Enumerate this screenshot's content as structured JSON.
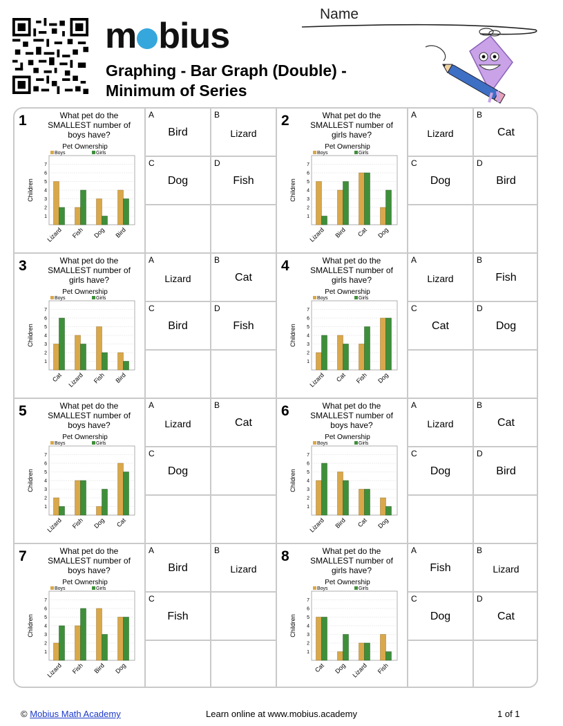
{
  "header": {
    "logo": "mobius",
    "title_line1": "Graphing - Bar Graph (Double) -",
    "title_line2": "Minimum of Series",
    "name_label": "Name"
  },
  "colors": {
    "boys": "#d9a84a",
    "girls": "#3f8f3a",
    "border": "#c9c9c9",
    "link": "#1a37c9",
    "logo_dot": "#35a7dd"
  },
  "problems": [
    {
      "number": "1",
      "question": "What pet do the SMALLEST number of boys have?",
      "options": [
        {
          "letter": "A",
          "text": "Bird"
        },
        {
          "letter": "B",
          "text": "Lizard"
        },
        {
          "letter": "C",
          "text": "Dog"
        },
        {
          "letter": "D",
          "text": "Fish"
        }
      ]
    },
    {
      "number": "2",
      "question": "What pet do the SMALLEST number of girls have?",
      "options": [
        {
          "letter": "A",
          "text": "Lizard"
        },
        {
          "letter": "B",
          "text": "Cat"
        },
        {
          "letter": "C",
          "text": "Dog"
        },
        {
          "letter": "D",
          "text": "Bird"
        }
      ]
    },
    {
      "number": "3",
      "question": "What pet do the SMALLEST number of girls have?",
      "options": [
        {
          "letter": "A",
          "text": "Lizard"
        },
        {
          "letter": "B",
          "text": "Cat"
        },
        {
          "letter": "C",
          "text": "Bird"
        },
        {
          "letter": "D",
          "text": "Fish"
        }
      ]
    },
    {
      "number": "4",
      "question": "What pet do the SMALLEST number of girls have?",
      "options": [
        {
          "letter": "A",
          "text": "Lizard"
        },
        {
          "letter": "B",
          "text": "Fish"
        },
        {
          "letter": "C",
          "text": "Cat"
        },
        {
          "letter": "D",
          "text": "Dog"
        }
      ]
    },
    {
      "number": "5",
      "question": "What pet do the SMALLEST number of boys have?",
      "options": [
        {
          "letter": "A",
          "text": "Lizard"
        },
        {
          "letter": "B",
          "text": "Cat"
        },
        {
          "letter": "C",
          "text": "Dog"
        }
      ]
    },
    {
      "number": "6",
      "question": "What pet do the SMALLEST number of boys have?",
      "options": [
        {
          "letter": "A",
          "text": "Lizard"
        },
        {
          "letter": "B",
          "text": "Cat"
        },
        {
          "letter": "C",
          "text": "Dog"
        },
        {
          "letter": "D",
          "text": "Bird"
        }
      ]
    },
    {
      "number": "7",
      "question": "What pet do the SMALLEST number of boys have?",
      "options": [
        {
          "letter": "A",
          "text": "Bird"
        },
        {
          "letter": "B",
          "text": "Lizard"
        },
        {
          "letter": "C",
          "text": "Fish"
        }
      ]
    },
    {
      "number": "8",
      "question": "What pet do the SMALLEST number of girls have?",
      "options": [
        {
          "letter": "A",
          "text": "Fish"
        },
        {
          "letter": "B",
          "text": "Lizard"
        },
        {
          "letter": "C",
          "text": "Dog"
        },
        {
          "letter": "D",
          "text": "Cat"
        }
      ]
    }
  ],
  "chart_data": [
    {
      "type": "bar",
      "title": "Pet Ownership",
      "ylabel": "Children",
      "ylim": [
        0,
        8
      ],
      "legend": "top-left",
      "categories": [
        "Lizard",
        "Fish",
        "Dog",
        "Bird"
      ],
      "series": [
        {
          "name": "Boys",
          "values": [
            5,
            2,
            3,
            4
          ]
        },
        {
          "name": "Girls",
          "values": [
            2,
            4,
            1,
            3
          ]
        }
      ]
    },
    {
      "type": "bar",
      "title": "Pet Ownership",
      "ylabel": "Children",
      "ylim": [
        0,
        8
      ],
      "legend": "top-left",
      "categories": [
        "Lizard",
        "Bird",
        "Cat",
        "Dog"
      ],
      "series": [
        {
          "name": "Boys",
          "values": [
            5,
            4,
            6,
            2
          ]
        },
        {
          "name": "Girls",
          "values": [
            1,
            5,
            6,
            4
          ]
        }
      ]
    },
    {
      "type": "bar",
      "title": "Pet Ownership",
      "ylabel": "Children",
      "ylim": [
        0,
        8
      ],
      "legend": "top-left",
      "categories": [
        "Cat",
        "Lizard",
        "Fish",
        "Bird"
      ],
      "series": [
        {
          "name": "Boys",
          "values": [
            3,
            4,
            5,
            2
          ]
        },
        {
          "name": "Girls",
          "values": [
            6,
            3,
            2,
            1
          ]
        }
      ]
    },
    {
      "type": "bar",
      "title": "Pet Ownership",
      "ylabel": "Children",
      "ylim": [
        0,
        8
      ],
      "legend": "top-left",
      "categories": [
        "Lizard",
        "Cat",
        "Fish",
        "Dog"
      ],
      "series": [
        {
          "name": "Boys",
          "values": [
            2,
            4,
            3,
            6
          ]
        },
        {
          "name": "Girls",
          "values": [
            4,
            3,
            5,
            6
          ]
        }
      ]
    },
    {
      "type": "bar",
      "title": "Pet Ownership",
      "ylabel": "Children",
      "ylim": [
        0,
        8
      ],
      "legend": "top-left",
      "categories": [
        "Lizard",
        "Fish",
        "Dog",
        "Cat"
      ],
      "series": [
        {
          "name": "Boys",
          "values": [
            2,
            4,
            1,
            6
          ]
        },
        {
          "name": "Girls",
          "values": [
            1,
            4,
            3,
            5
          ]
        }
      ]
    },
    {
      "type": "bar",
      "title": "Pet Ownership",
      "ylabel": "Children",
      "ylim": [
        0,
        8
      ],
      "legend": "top-left",
      "categories": [
        "Lizard",
        "Bird",
        "Cat",
        "Dog"
      ],
      "series": [
        {
          "name": "Boys",
          "values": [
            4,
            5,
            3,
            2
          ]
        },
        {
          "name": "Girls",
          "values": [
            6,
            4,
            3,
            1
          ]
        }
      ]
    },
    {
      "type": "bar",
      "title": "Pet Ownership",
      "ylabel": "Children",
      "ylim": [
        0,
        8
      ],
      "legend": "top-left",
      "categories": [
        "Lizard",
        "Fish",
        "Bird",
        "Dog"
      ],
      "series": [
        {
          "name": "Boys",
          "values": [
            2,
            4,
            6,
            5
          ]
        },
        {
          "name": "Girls",
          "values": [
            4,
            6,
            3,
            5
          ]
        }
      ]
    },
    {
      "type": "bar",
      "title": "Pet Ownership",
      "ylabel": "Children",
      "ylim": [
        0,
        8
      ],
      "legend": "top-left",
      "categories": [
        "Cat",
        "Dog",
        "Lizard",
        "Fish"
      ],
      "series": [
        {
          "name": "Boys",
          "values": [
            5,
            1,
            2,
            3
          ]
        },
        {
          "name": "Girls",
          "values": [
            5,
            3,
            2,
            1
          ]
        }
      ]
    }
  ],
  "footer": {
    "copyright_symbol": "©",
    "copyright_link": "Mobius Math Academy",
    "center_text": "Learn online at www.mobius.academy",
    "page": "1 of 1"
  }
}
